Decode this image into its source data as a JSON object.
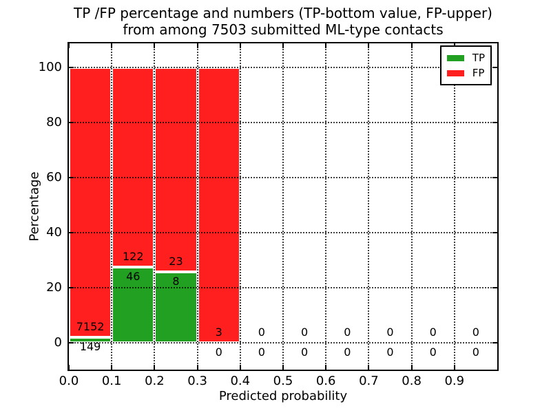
{
  "figure": {
    "title_line1": "TP /FP percentage and numbers (TP-bottom value, FP-upper)",
    "title_line2": "from among 7503 submitted ML-type contacts",
    "xlabel": "Predicted probability",
    "ylabel": "Percentage"
  },
  "chart_data": {
    "type": "bar",
    "stacked": true,
    "normalized": "each bin stacks to 100%",
    "title": "TP /FP percentage and numbers (TP-bottom value, FP-upper) from among 7503 submitted ML-type contacts",
    "xlabel": "Predicted probability",
    "ylabel": "Percentage",
    "total_contacts": 7503,
    "bin_width": 0.1,
    "bin_starts": [
      0.0,
      0.1,
      0.2,
      0.3,
      0.4,
      0.5,
      0.6,
      0.7,
      0.8,
      0.9
    ],
    "x_tick_labels": [
      "0.0",
      "0.1",
      "0.2",
      "0.3",
      "0.4",
      "0.5",
      "0.6",
      "0.7",
      "0.8",
      "0.9"
    ],
    "y_ticks": [
      0,
      20,
      40,
      60,
      80,
      100
    ],
    "y_tick_labels": [
      "0",
      "20",
      "40",
      "60",
      "80",
      "100"
    ],
    "xlim": [
      0.0,
      1.0
    ],
    "ylim": [
      -9.75,
      108.75
    ],
    "grid": "dotted, drawn above bars",
    "series": [
      {
        "name": "TP",
        "color": "#22a022",
        "counts": [
          149,
          46,
          8,
          0,
          0,
          0,
          0,
          0,
          0,
          0
        ]
      },
      {
        "name": "FP",
        "color": "#ff1f1f",
        "counts": [
          7152,
          122,
          23,
          3,
          0,
          0,
          0,
          0,
          0,
          0
        ]
      }
    ],
    "bar_label_rule": "FP count printed above TP-bar top, TP count printed below it",
    "legend": {
      "position": "upper right",
      "entries": [
        "TP",
        "FP"
      ]
    },
    "colors": {
      "tp_green": "#22a022",
      "fp_red": "#ff1f1f",
      "frame": "#000000",
      "background": "#ffffff"
    }
  }
}
